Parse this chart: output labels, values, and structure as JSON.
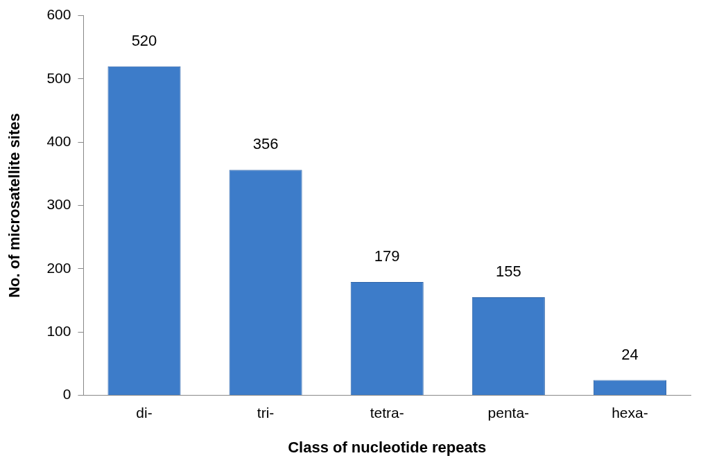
{
  "chart_data": {
    "type": "bar",
    "xlabel": "Class of nucleotide repeats",
    "ylabel": "No. of microsatellite sites",
    "categories": [
      "di-",
      "tri-",
      "tetra-",
      "penta-",
      "hexa-"
    ],
    "values": [
      520,
      356,
      179,
      155,
      24
    ],
    "color": "#3d7cc9",
    "ylim": [
      0,
      600
    ],
    "yticks": [
      0,
      100,
      200,
      300,
      400,
      500,
      600
    ],
    "grid": false,
    "legend": false,
    "data_labels": true
  }
}
